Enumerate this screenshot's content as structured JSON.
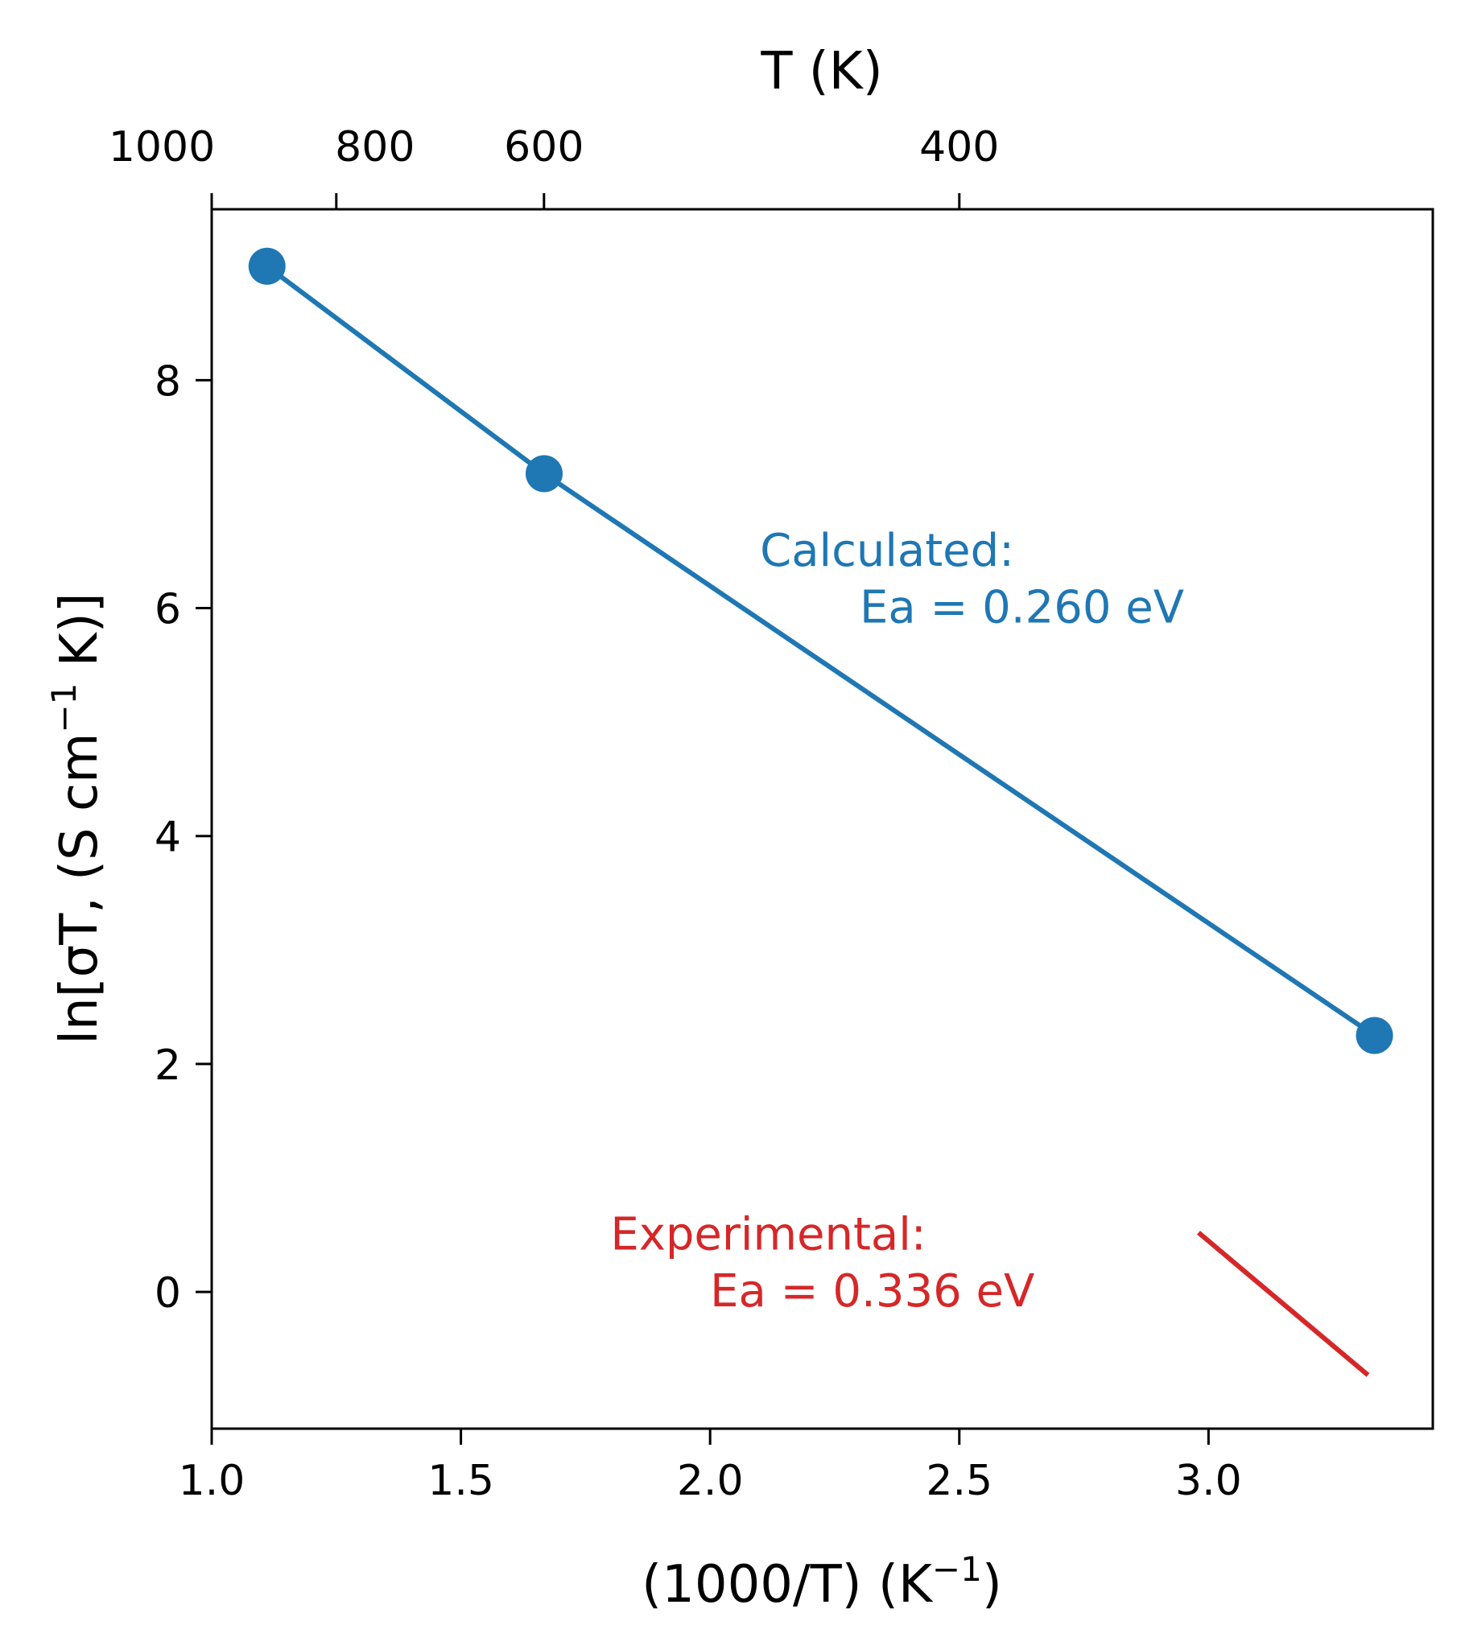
{
  "chart_data": {
    "type": "line",
    "bottom_axis": {
      "label": "(1000/T) (K",
      "label_sup": "−1",
      "label_end": ")",
      "range": [
        1.0,
        3.45
      ],
      "ticks": [
        1.0,
        1.5,
        2.0,
        2.5,
        3.0
      ],
      "tick_labels": [
        "1.0",
        "1.5",
        "2.0",
        "2.5",
        "3.0"
      ]
    },
    "left_axis": {
      "label": "ln[σT, (S cm",
      "label_sup": "−1",
      "label_end": " K)]",
      "range": [
        -1.2,
        9.5
      ],
      "ticks": [
        0,
        2,
        4,
        6,
        8
      ],
      "tick_labels": [
        "0",
        "2",
        "4",
        "6",
        "8"
      ]
    },
    "top_axis": {
      "label": "T (K)",
      "ticks_x": [
        1.0,
        1.25,
        1.6667,
        2.5
      ],
      "tick_labels": [
        "1000",
        "800",
        "600",
        "400"
      ]
    },
    "series": [
      {
        "color": "#1f77b4",
        "marker": "circle",
        "x": [
          1.111,
          1.667,
          3.333
        ],
        "y": [
          9.0,
          7.18,
          2.25
        ]
      },
      {
        "color": "#d62728",
        "marker": "none",
        "x": [
          2.98,
          3.32
        ],
        "y": [
          0.52,
          -0.73
        ]
      }
    ],
    "annotations": [
      {
        "line1": "Calculated:",
        "line2": "Ea = 0.260 eV",
        "color": "#1f77b4",
        "x1": 2.1,
        "y1": 6.5,
        "x2": 2.3,
        "y2": 6.0
      },
      {
        "line1": "Experimental:",
        "line2": "Ea = 0.336 eV",
        "color": "#d62728",
        "x1": 1.8,
        "y1": 0.5,
        "x2": 2.0,
        "y2": 0.0
      }
    ],
    "grid": false
  }
}
